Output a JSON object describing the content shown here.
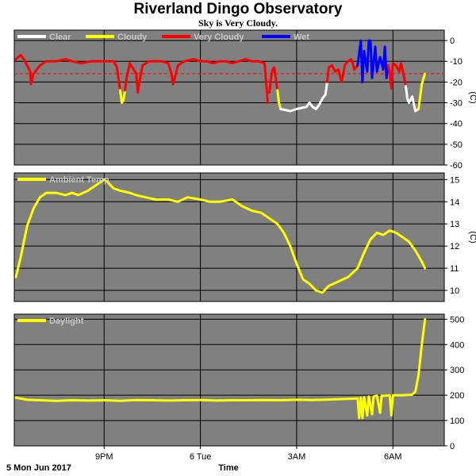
{
  "title": "Riverland Dingo Observatory",
  "subtitle": "Sky is Very Cloudy.",
  "colors": {
    "panel_bg": "#808080",
    "grid": "#000000",
    "clear": "#ffffff",
    "cloudy": "#ffff00",
    "very_cloudy": "#ff0000",
    "wet": "#0000ff",
    "threshold": "#ff0000"
  },
  "footer": {
    "date_label": "5 Mon Jun 2017",
    "xlabel": "Time"
  },
  "x_axis": {
    "range_hours": [
      18.2,
      31.6
    ],
    "ticks": [
      {
        "hour": 21,
        "label": "9PM"
      },
      {
        "hour": 24,
        "label": "6 Tue"
      },
      {
        "hour": 27,
        "label": "3AM"
      },
      {
        "hour": 30,
        "label": "6AM"
      }
    ]
  },
  "chart_data": [
    {
      "type": "line",
      "panel": "sky",
      "ylabel": "(C)",
      "ylim": [
        -60,
        5
      ],
      "yticks": [
        0,
        -10,
        -20,
        -30,
        -40,
        -50,
        -60
      ],
      "threshold": -16,
      "grid": true,
      "legend_position": "top-left",
      "legend": [
        {
          "name": "Clear",
          "color": "#ffffff"
        },
        {
          "name": "Cloudy",
          "color": "#ffff00"
        },
        {
          "name": "Very Cloudy",
          "color": "#ff0000"
        },
        {
          "name": "Wet",
          "color": "#0000ff"
        }
      ],
      "series": [
        {
          "name": "Very Cloudy",
          "color": "#ff0000",
          "points": [
            [
              18.25,
              -9
            ],
            [
              18.4,
              -7
            ],
            [
              18.5,
              -9
            ],
            [
              18.6,
              -12
            ],
            [
              18.7,
              -15
            ],
            [
              18.72,
              -21
            ],
            [
              18.8,
              -16
            ],
            [
              19.0,
              -12
            ],
            [
              19.2,
              -10
            ],
            [
              19.5,
              -10
            ],
            [
              19.8,
              -9
            ],
            [
              20.0,
              -10
            ],
            [
              20.3,
              -11
            ],
            [
              20.6,
              -10
            ],
            [
              21.0,
              -10
            ],
            [
              21.3,
              -10
            ],
            [
              21.4,
              -13
            ],
            [
              21.5,
              -24
            ]
          ]
        },
        {
          "name": "Cloudy",
          "color": "#ffff00",
          "points": [
            [
              21.5,
              -24
            ],
            [
              21.55,
              -30
            ],
            [
              21.6,
              -29
            ],
            [
              21.65,
              -24
            ]
          ]
        },
        {
          "name": "Very Cloudy",
          "color": "#ff0000",
          "points": [
            [
              21.65,
              -24
            ],
            [
              21.7,
              -18
            ],
            [
              21.8,
              -11
            ],
            [
              22.0,
              -16
            ],
            [
              22.05,
              -25
            ],
            [
              22.1,
              -20
            ],
            [
              22.2,
              -12
            ],
            [
              22.4,
              -10
            ],
            [
              22.6,
              -10
            ],
            [
              22.8,
              -10
            ],
            [
              23.0,
              -11
            ],
            [
              23.1,
              -16
            ],
            [
              23.15,
              -21
            ]
          ]
        },
        {
          "name": "Very Cloudy",
          "color": "#ff0000",
          "points": [
            [
              23.15,
              -21
            ],
            [
              23.3,
              -12
            ],
            [
              23.5,
              -10
            ],
            [
              23.8,
              -9
            ],
            [
              24.0,
              -10
            ],
            [
              24.2,
              -10
            ],
            [
              24.4,
              -11
            ],
            [
              24.6,
              -10
            ],
            [
              24.8,
              -10
            ],
            [
              25.0,
              -11
            ],
            [
              25.2,
              -10
            ],
            [
              25.4,
              -9
            ],
            [
              25.6,
              -10
            ],
            [
              25.8,
              -10
            ],
            [
              26.0,
              -11
            ],
            [
              26.05,
              -20
            ],
            [
              26.1,
              -30
            ]
          ]
        },
        {
          "name": "Very Cloudy",
          "color": "#ff0000",
          "points": [
            [
              26.15,
              -25
            ],
            [
              26.2,
              -18
            ],
            [
              26.25,
              -14
            ],
            [
              26.3,
              -13
            ],
            [
              26.35,
              -18
            ],
            [
              26.4,
              -24
            ]
          ]
        },
        {
          "name": "Cloudy",
          "color": "#ffff00",
          "points": [
            [
              26.4,
              -24
            ],
            [
              26.45,
              -30
            ],
            [
              26.5,
              -33
            ]
          ]
        },
        {
          "name": "Clear",
          "color": "#ffffff",
          "points": [
            [
              26.5,
              -33
            ],
            [
              26.8,
              -34
            ],
            [
              27.0,
              -33
            ],
            [
              27.3,
              -32
            ],
            [
              27.4,
              -30
            ],
            [
              27.5,
              -32
            ],
            [
              27.6,
              -33
            ],
            [
              27.7,
              -31
            ],
            [
              27.8,
              -28
            ],
            [
              27.9,
              -26
            ],
            [
              27.95,
              -20
            ]
          ]
        },
        {
          "name": "Very Cloudy",
          "color": "#ff0000",
          "points": [
            [
              27.95,
              -20
            ],
            [
              28.0,
              -13
            ],
            [
              28.1,
              -12
            ],
            [
              28.2,
              -15
            ],
            [
              28.3,
              -14
            ],
            [
              28.4,
              -20
            ],
            [
              28.5,
              -12
            ],
            [
              28.6,
              -10
            ],
            [
              28.7,
              -9
            ],
            [
              28.75,
              -11
            ],
            [
              28.8,
              -14
            ],
            [
              28.9,
              -12
            ]
          ]
        },
        {
          "name": "Wet",
          "color": "#0000ff",
          "points": [
            [
              28.9,
              -12
            ],
            [
              29.0,
              0
            ],
            [
              29.05,
              -20
            ],
            [
              29.1,
              -5
            ],
            [
              29.2,
              -15
            ],
            [
              29.25,
              0
            ],
            [
              29.3,
              0
            ],
            [
              29.35,
              -18
            ],
            [
              29.45,
              -3
            ],
            [
              29.5,
              -15
            ],
            [
              29.6,
              -8
            ],
            [
              29.7,
              -14
            ],
            [
              29.75,
              -3
            ],
            [
              29.8,
              -18
            ],
            [
              29.85,
              -12
            ]
          ]
        },
        {
          "name": "Very Cloudy",
          "color": "#ff0000",
          "points": [
            [
              29.85,
              -12
            ],
            [
              29.9,
              -15
            ],
            [
              29.95,
              -23
            ],
            [
              30.0,
              -11
            ],
            [
              30.1,
              -12
            ],
            [
              30.2,
              -15
            ],
            [
              30.25,
              -11
            ],
            [
              30.3,
              -14
            ],
            [
              30.4,
              -22
            ]
          ]
        },
        {
          "name": "Clear",
          "color": "#ffffff",
          "points": [
            [
              30.4,
              -22
            ],
            [
              30.45,
              -28
            ],
            [
              30.5,
              -30
            ],
            [
              30.6,
              -27
            ],
            [
              30.7,
              -34
            ],
            [
              30.8,
              -33
            ]
          ]
        },
        {
          "name": "Cloudy",
          "color": "#ffff00",
          "points": [
            [
              30.8,
              -33
            ],
            [
              30.9,
              -21
            ],
            [
              31.0,
              -16
            ]
          ]
        }
      ]
    },
    {
      "type": "line",
      "panel": "ambient",
      "ylabel": "(C)",
      "ylim": [
        9.5,
        15.3
      ],
      "yticks": [
        10,
        11,
        12,
        13,
        14,
        15
      ],
      "grid": true,
      "legend_position": "top-left",
      "legend": [
        {
          "name": "Ambient Temp",
          "color": "#ffff00"
        }
      ],
      "series": [
        {
          "name": "Ambient Temp",
          "color": "#ffff00",
          "points": [
            [
              18.25,
              10.6
            ],
            [
              18.4,
              11.5
            ],
            [
              18.6,
              12.9
            ],
            [
              18.8,
              13.7
            ],
            [
              19.0,
              14.2
            ],
            [
              19.2,
              14.4
            ],
            [
              19.5,
              14.4
            ],
            [
              19.8,
              14.3
            ],
            [
              20.0,
              14.4
            ],
            [
              20.2,
              14.3
            ],
            [
              20.5,
              14.5
            ],
            [
              20.8,
              14.8
            ],
            [
              21.0,
              15.0
            ],
            [
              21.1,
              14.9
            ],
            [
              21.3,
              14.6
            ],
            [
              21.5,
              14.5
            ],
            [
              21.8,
              14.4
            ],
            [
              22.0,
              14.3
            ],
            [
              22.3,
              14.2
            ],
            [
              22.6,
              14.1
            ],
            [
              23.0,
              14.1
            ],
            [
              23.3,
              14.0
            ],
            [
              23.6,
              14.2
            ],
            [
              24.0,
              14.1
            ],
            [
              24.3,
              14.0
            ],
            [
              24.6,
              14.0
            ],
            [
              25.0,
              14.1
            ],
            [
              25.3,
              13.8
            ],
            [
              25.6,
              13.6
            ],
            [
              25.9,
              13.5
            ],
            [
              26.2,
              13.2
            ],
            [
              26.4,
              13.0
            ],
            [
              26.6,
              12.6
            ],
            [
              26.8,
              12.0
            ],
            [
              27.0,
              11.2
            ],
            [
              27.2,
              10.5
            ],
            [
              27.4,
              10.3
            ],
            [
              27.6,
              10.0
            ],
            [
              27.8,
              9.9
            ],
            [
              28.0,
              10.2
            ],
            [
              28.3,
              10.4
            ],
            [
              28.6,
              10.6
            ],
            [
              28.9,
              11.0
            ],
            [
              29.1,
              11.7
            ],
            [
              29.3,
              12.3
            ],
            [
              29.5,
              12.6
            ],
            [
              29.7,
              12.5
            ],
            [
              29.9,
              12.7
            ],
            [
              30.1,
              12.6
            ],
            [
              30.3,
              12.4
            ],
            [
              30.5,
              12.2
            ],
            [
              30.7,
              11.8
            ],
            [
              30.9,
              11.3
            ],
            [
              31.0,
              11.0
            ]
          ]
        }
      ]
    },
    {
      "type": "line",
      "panel": "daylight",
      "ylabel": "",
      "ylim": [
        0,
        520
      ],
      "yticks": [
        0,
        100,
        200,
        300,
        400,
        500
      ],
      "grid": true,
      "legend_position": "top-left",
      "legend": [
        {
          "name": "Daylight",
          "color": "#ffff00"
        }
      ],
      "series": [
        {
          "name": "Daylight",
          "color": "#ffff00",
          "points": [
            [
              18.25,
              190
            ],
            [
              18.6,
              182
            ],
            [
              19.0,
              180
            ],
            [
              19.5,
              178
            ],
            [
              20.0,
              180
            ],
            [
              20.5,
              179
            ],
            [
              21.0,
              180
            ],
            [
              21.5,
              178
            ],
            [
              22.0,
              181
            ],
            [
              22.5,
              180
            ],
            [
              23.0,
              179
            ],
            [
              23.5,
              180
            ],
            [
              24.0,
              181
            ],
            [
              24.5,
              179
            ],
            [
              25.0,
              180
            ],
            [
              25.5,
              180
            ],
            [
              26.0,
              181
            ],
            [
              26.5,
              180
            ],
            [
              27.0,
              182
            ],
            [
              27.5,
              181
            ],
            [
              28.0,
              183
            ],
            [
              28.5,
              185
            ],
            [
              28.9,
              187
            ],
            [
              28.95,
              110
            ],
            [
              29.0,
              190
            ],
            [
              29.05,
              110
            ],
            [
              29.1,
              192
            ],
            [
              29.2,
              120
            ],
            [
              29.25,
              195
            ],
            [
              29.35,
              125
            ],
            [
              29.4,
              195
            ],
            [
              29.5,
              198
            ],
            [
              29.6,
              130
            ],
            [
              29.65,
              198
            ],
            [
              29.7,
              197
            ],
            [
              29.9,
              200
            ],
            [
              29.95,
              120
            ],
            [
              30.0,
              200
            ],
            [
              30.3,
              200
            ],
            [
              30.6,
              202
            ],
            [
              30.7,
              215
            ],
            [
              30.8,
              280
            ],
            [
              30.9,
              400
            ],
            [
              31.0,
              500
            ]
          ]
        }
      ]
    }
  ]
}
